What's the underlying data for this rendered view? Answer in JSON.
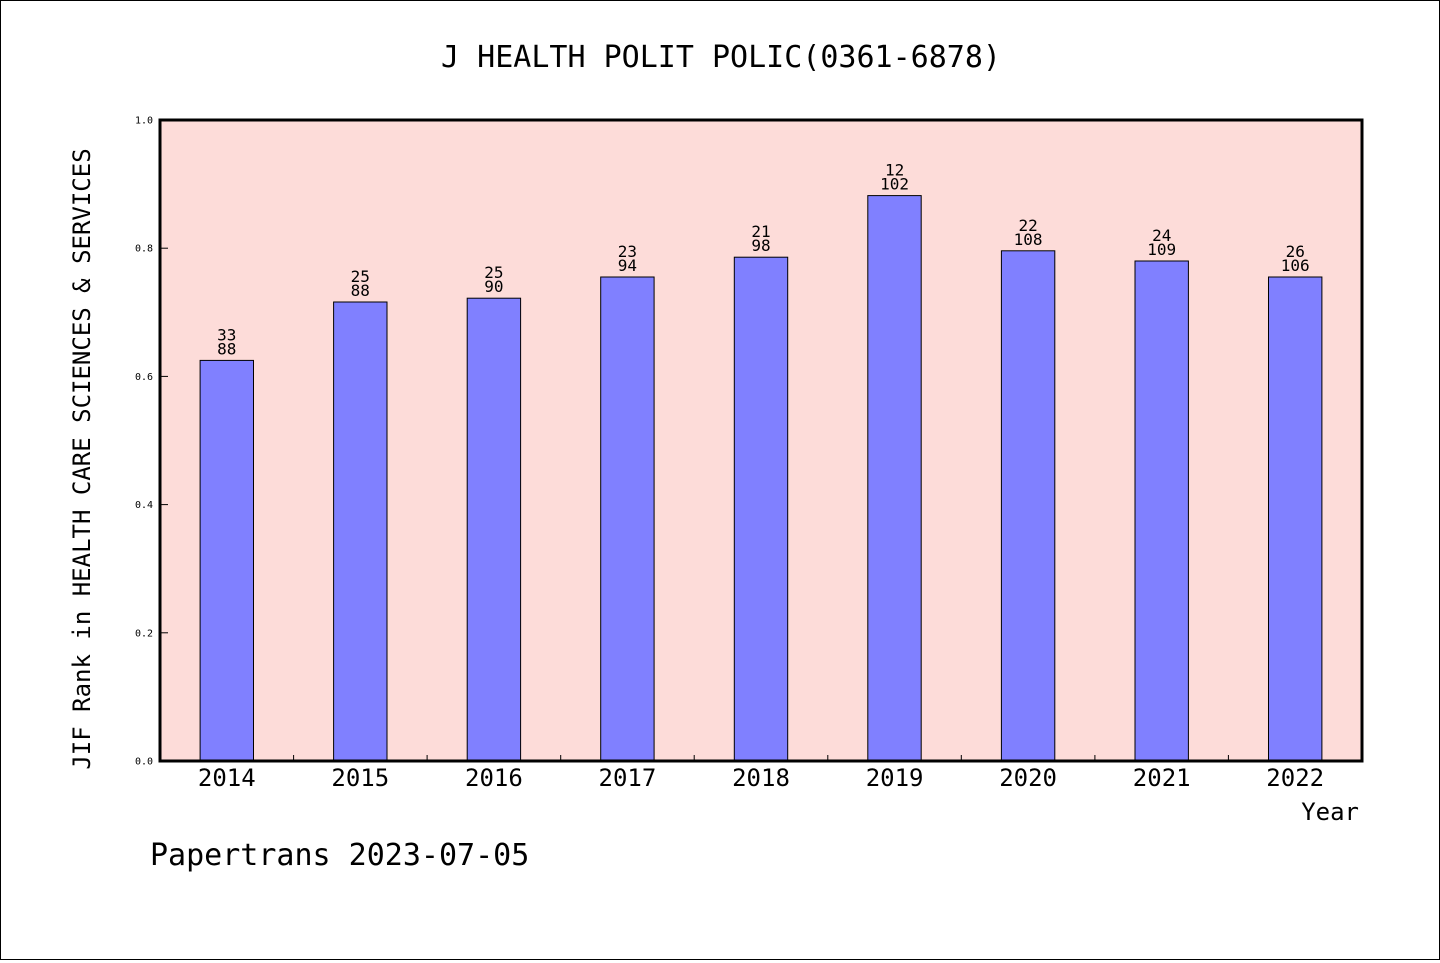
{
  "chart_data": {
    "type": "bar",
    "title": "J HEALTH POLIT POLIC(0361-6878)",
    "ylabel": "JIF Rank in HEALTH CARE SCIENCES & SERVICES",
    "xlabel": "Year",
    "ylim": [
      0.0,
      1.0
    ],
    "yticks": [
      "0.0",
      "0.2",
      "0.4",
      "0.6",
      "0.8",
      "1.0"
    ],
    "categories": [
      "2014",
      "2015",
      "2016",
      "2017",
      "2018",
      "2019",
      "2020",
      "2021",
      "2022"
    ],
    "values": [
      0.625,
      0.716,
      0.722,
      0.755,
      0.786,
      0.882,
      0.796,
      0.78,
      0.755
    ],
    "labels_top": [
      "33",
      "25",
      "25",
      "23",
      "21",
      "12",
      "22",
      "24",
      "26"
    ],
    "labels_bottom": [
      "88",
      "88",
      "90",
      "94",
      "98",
      "102",
      "108",
      "109",
      "106"
    ],
    "plot_background": "#fddcd9",
    "bar_color": "#8080ff",
    "grid": false
  },
  "footer": "Papertrans 2023-07-05"
}
